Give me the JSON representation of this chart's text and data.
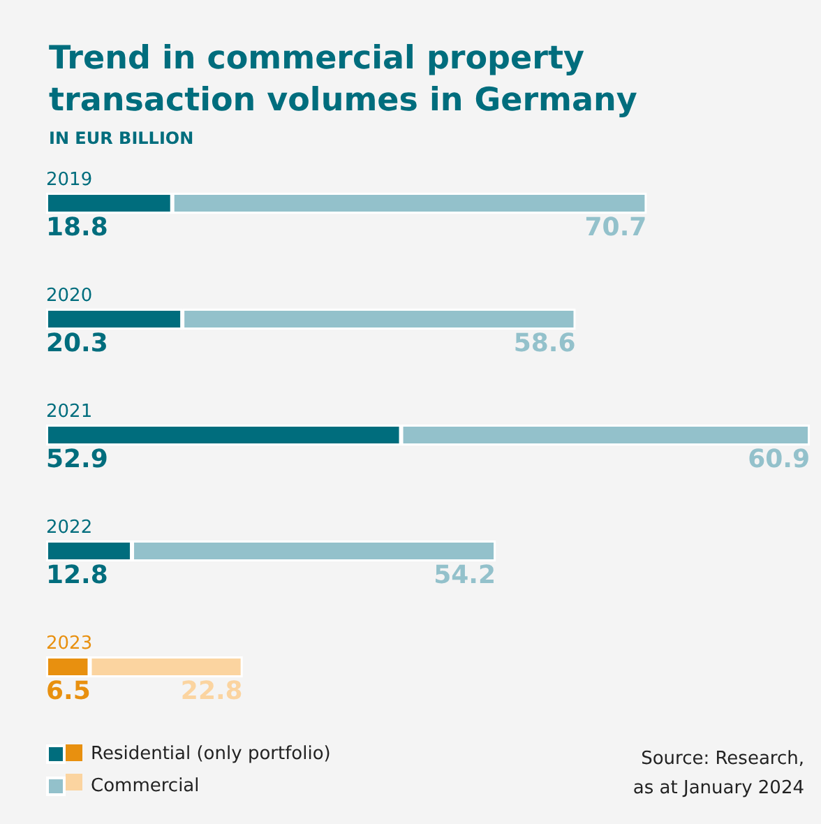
{
  "chart_data": {
    "type": "bar",
    "orientation": "horizontal",
    "stacked": true,
    "data_labels": true,
    "legend": "bottom left",
    "title": "Trend in commercial property\ntransaction volumes in Germany",
    "subtitle": "IN EUR BILLION",
    "categories": [
      "2019",
      "2020",
      "2021",
      "2022",
      "2023"
    ],
    "series": [
      {
        "name": "Residential (only portfolio)",
        "color": "#006d7d",
        "colors": [
          "#006d7d",
          "#006d7d",
          "#006d7d",
          "#006d7d",
          "#e8900f"
        ],
        "values": [
          18.8,
          20.3,
          52.9,
          12.8,
          6.5
        ]
      },
      {
        "name": "Commercial",
        "color": "#93c1cb",
        "colors": [
          "#93c1cb",
          "#93c1cb",
          "#93c1cb",
          "#93c1cb",
          "#fbd4a0"
        ],
        "values": [
          70.7,
          58.6,
          60.9,
          54.2,
          22.8
        ]
      }
    ],
    "annotations": [
      "Source: Research,\nas at January 2024"
    ]
  }
}
